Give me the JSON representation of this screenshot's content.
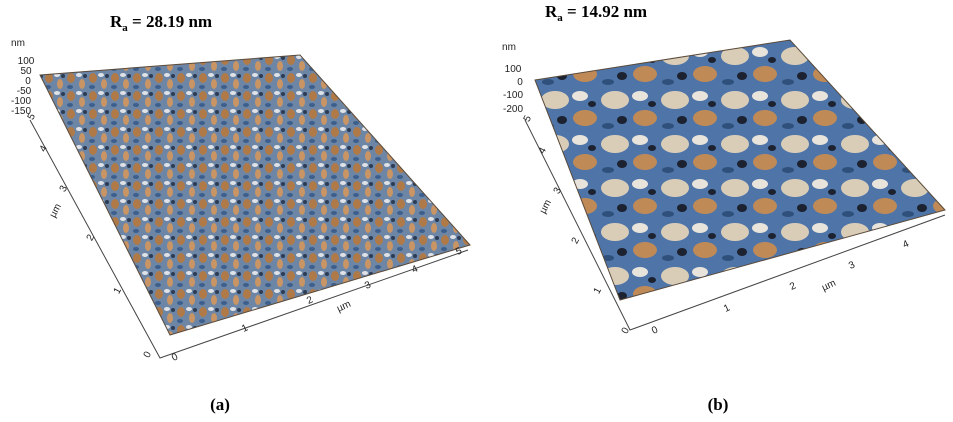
{
  "panels": [
    {
      "title": {
        "symbol": "R",
        "subscript": "a",
        "rest": " = 28.19 nm"
      },
      "z_axis": {
        "label": "nm",
        "ticks": [
          "100",
          "50",
          "0",
          "-50",
          "-100",
          "-150"
        ]
      },
      "y_axis": {
        "label": "µm",
        "ticks": [
          "0",
          "1",
          "2",
          "3",
          "4",
          "5"
        ]
      },
      "x_axis": {
        "label": "µm",
        "ticks": [
          "0",
          "1",
          "2",
          "3",
          "4",
          "5"
        ]
      },
      "caption": "(a)"
    },
    {
      "title": {
        "symbol": "R",
        "subscript": "a",
        "rest": " = 14.92 nm"
      },
      "z_axis": {
        "label": "nm",
        "ticks": [
          "100",
          "0",
          "-100",
          "-200"
        ]
      },
      "y_axis": {
        "label": "µm",
        "ticks": [
          "0",
          "1",
          "2",
          "3",
          "4",
          "5"
        ]
      },
      "x_axis": {
        "label": "µm",
        "ticks": [
          "0",
          "1",
          "2",
          "3",
          "4"
        ]
      },
      "caption": "(b)"
    }
  ]
}
